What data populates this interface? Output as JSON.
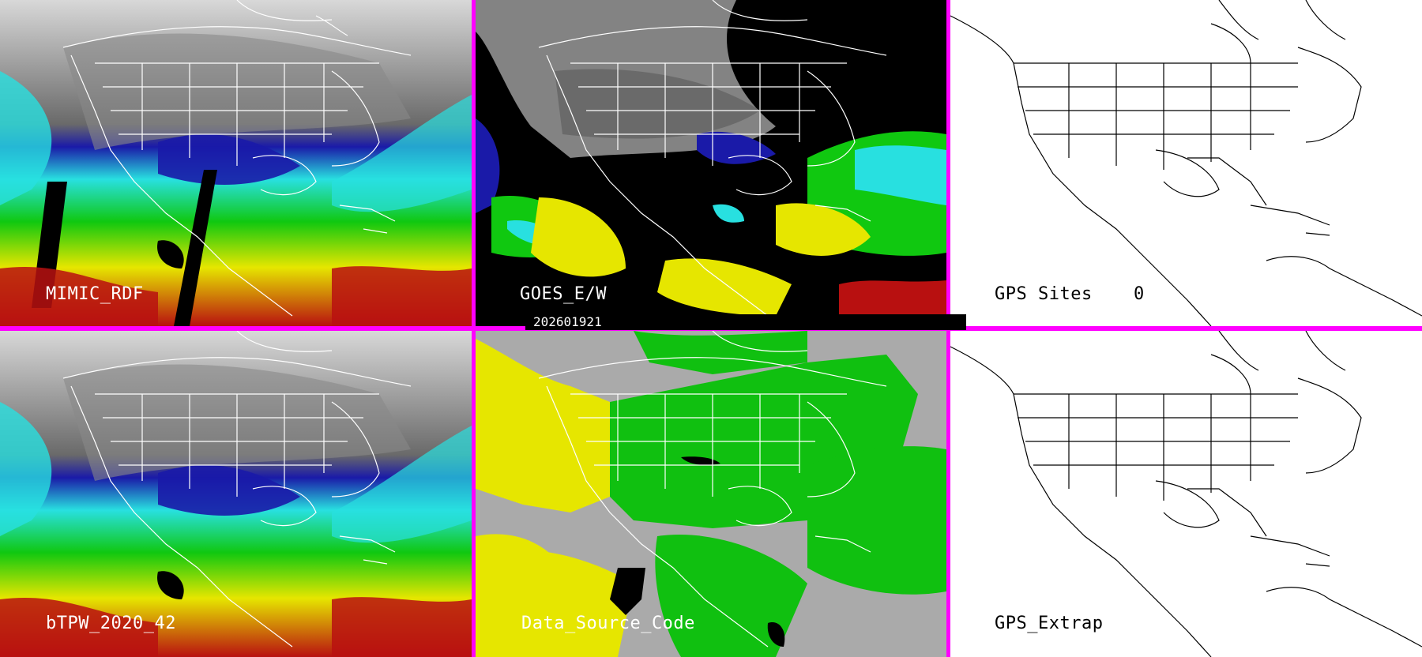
{
  "panels": [
    {
      "id": "mimic",
      "label": "MIMIC_RDF"
    },
    {
      "id": "goes",
      "label": "GOES_E/W"
    },
    {
      "id": "gps-sites",
      "label": "GPS Sites",
      "count": "0"
    },
    {
      "id": "btpw",
      "label": "bTPW_2020_42"
    },
    {
      "id": "source",
      "label": "Data_Source_Code"
    },
    {
      "id": "gps-extrap",
      "label": "GPS_Extrap"
    }
  ],
  "timestamp": "202601921",
  "colors": {
    "divider": "#ff00ff",
    "moisture_low": "#1a1aa8",
    "moisture_mid": "#28e0e0",
    "moisture_high": "#10c810",
    "moisture_higher": "#e6e600",
    "moisture_max": "#b81010",
    "source_gray": "#aaaaaa",
    "source_yellow": "#e6e600",
    "source_green": "#10c010"
  }
}
